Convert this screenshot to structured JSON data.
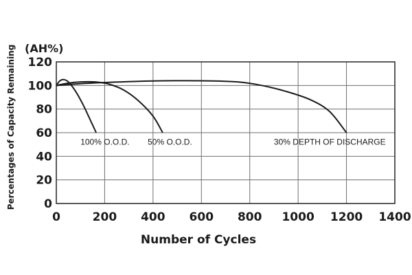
{
  "chart_data": {
    "type": "line",
    "xlabel": "Number of Cycles",
    "ylabel": "Percentages of Capacity Remaining",
    "y_unit": "(AH%)",
    "xlim": [
      0,
      1400
    ],
    "ylim": [
      0,
      120
    ],
    "x_ticks": [
      "0",
      "200",
      "400",
      "600",
      "800",
      "1000",
      "1200",
      "1400"
    ],
    "y_ticks": [
      "0",
      "20",
      "40",
      "60",
      "80",
      "100",
      "120"
    ],
    "grid": true,
    "series": [
      {
        "name": "100% O.O.D.",
        "color": "#1a1a1a",
        "points": [
          [
            0,
            100
          ],
          [
            15,
            104
          ],
          [
            30,
            105
          ],
          [
            50,
            103
          ],
          [
            80,
            95
          ],
          [
            110,
            84
          ],
          [
            140,
            71
          ],
          [
            165,
            60
          ]
        ]
      },
      {
        "name": "50% O.O.D.",
        "color": "#1a1a1a",
        "points": [
          [
            0,
            100
          ],
          [
            50,
            102
          ],
          [
            100,
            103
          ],
          [
            160,
            103
          ],
          [
            220,
            101
          ],
          [
            280,
            96
          ],
          [
            340,
            87
          ],
          [
            400,
            74
          ],
          [
            440,
            60
          ]
        ]
      },
      {
        "name": "30% DEPTH OF DISCHARGE",
        "color": "#1a1a1a",
        "points": [
          [
            0,
            100
          ],
          [
            100,
            101.5
          ],
          [
            200,
            102.5
          ],
          [
            400,
            103.8
          ],
          [
            600,
            104
          ],
          [
            750,
            103
          ],
          [
            850,
            100
          ],
          [
            950,
            95
          ],
          [
            1050,
            88
          ],
          [
            1130,
            78
          ],
          [
            1200,
            60
          ]
        ]
      }
    ],
    "annotations": [
      {
        "text": "100% O.O.D.",
        "x": 100,
        "y": 52
      },
      {
        "text": "50% O.O.D.",
        "x": 378,
        "y": 52
      },
      {
        "text": "30% DEPTH OF DISCHARGE",
        "x": 900,
        "y": 52
      }
    ]
  }
}
